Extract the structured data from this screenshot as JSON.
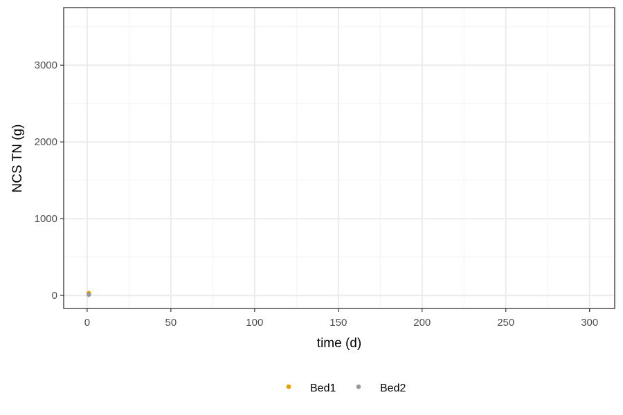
{
  "chart_data": {
    "type": "scatter",
    "title": "",
    "xlabel": "time (d)",
    "ylabel": "NCS TN (g)",
    "xlim": [
      -14,
      315
    ],
    "ylim": [
      -170,
      3750
    ],
    "x_ticks": [
      0,
      50,
      100,
      150,
      200,
      250,
      300
    ],
    "y_ticks": [
      0,
      1000,
      2000,
      3000
    ],
    "x_minor_ticks": [
      25,
      75,
      125,
      175,
      225,
      275
    ],
    "y_minor_ticks": [
      500,
      1500,
      2500,
      3500
    ],
    "grid": true,
    "legend_position": "bottom",
    "series": [
      {
        "name": "Bed1",
        "color": "#E69F00",
        "points": [
          {
            "x": 1,
            "y": 30
          }
        ]
      },
      {
        "name": "Bed2",
        "color": "#999999",
        "points": [
          {
            "x": 1,
            "y": 10
          }
        ]
      }
    ]
  }
}
